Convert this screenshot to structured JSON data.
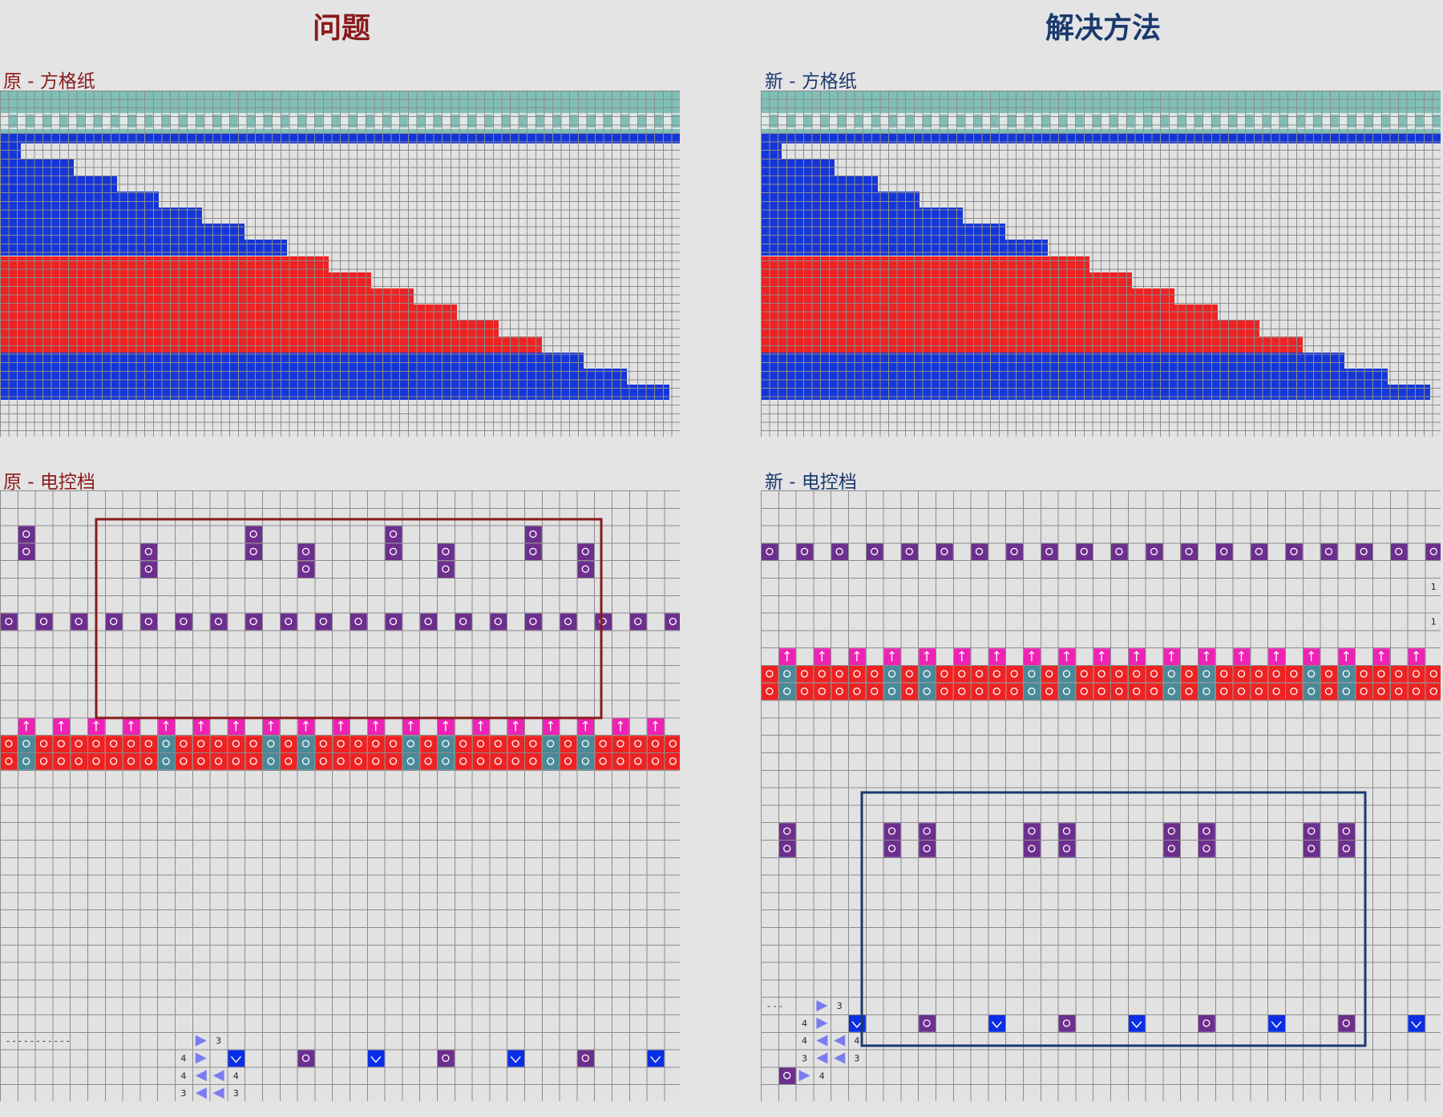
{
  "headings": {
    "problem": "问题",
    "solution": "解决方法"
  },
  "labels": {
    "orig_grid": "原 - 方格纸",
    "new_grid": "新 - 方格纸",
    "orig_ctrl": "原 - 电控档",
    "new_ctrl": "新 - 电控档"
  },
  "colors": {
    "background": "#e4e4e4",
    "grid_line": "#8c8c8c",
    "teal": "#7fbfb6",
    "blue": "#1436d8",
    "red": "#ee2222",
    "purple": "#6d2f8e",
    "magenta": "#ee22b4",
    "steel": "#4a8a98",
    "problem_title": "#8b1a1a",
    "solution_title": "#1a3a6e",
    "problem_frame": "#8b1a1a",
    "solution_frame": "#1a3a6e"
  },
  "icons": [
    "knit-loop-icon",
    "transfer-arrow-icon",
    "carriage-arrow-icon",
    "tuck-icon"
  ],
  "left_control": {
    "dash_text": "- - - - - - - - - - -",
    "row_labels": [
      [
        "3"
      ],
      [
        "4"
      ],
      [
        "4",
        "4"
      ],
      [
        "3",
        "3"
      ]
    ]
  },
  "right_control": {
    "dash_text": "- - -",
    "side_numbers": [
      "1",
      "1"
    ],
    "row_labels": [
      [
        "3"
      ],
      [
        "4"
      ],
      [
        "4",
        "4"
      ],
      [
        "3",
        "3"
      ],
      [
        "4"
      ]
    ]
  }
}
